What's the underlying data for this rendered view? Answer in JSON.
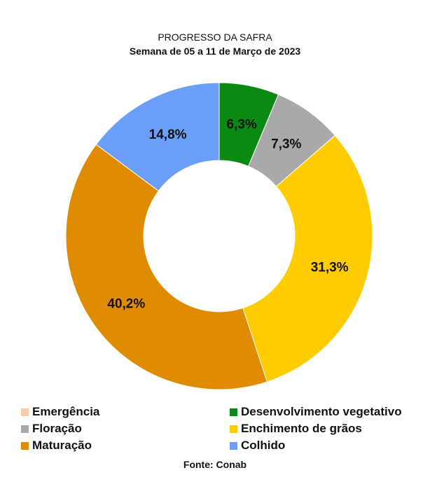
{
  "chart_data": {
    "type": "pie",
    "title": "PROGRESSO DA SAFRA",
    "subtitle": "Semana de 05 a 11 de Março de 2023",
    "categories": [
      "Emergência",
      "Desenvolvimento vegetativo",
      "Floração",
      "Enchimento de grãos",
      "Maturação",
      "Colhido"
    ],
    "values": [
      0.0,
      6.3,
      7.3,
      31.3,
      40.2,
      14.8
    ],
    "data_labels": [
      "",
      "6,3%",
      "7,3%",
      "31,3%",
      "40,2%",
      "14,8%"
    ],
    "colors": [
      "#f8cbad",
      "#0a8a12",
      "#a9a9a9",
      "#ffcc00",
      "#df8c00",
      "#6b9ef8"
    ],
    "donut": true,
    "legend_position": "bottom"
  },
  "source": "Fonte: Conab"
}
